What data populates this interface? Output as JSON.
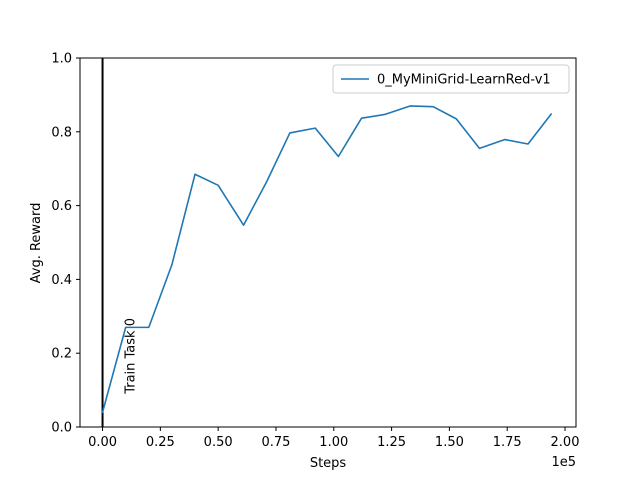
{
  "chart_data": {
    "type": "line",
    "title": "",
    "xlabel": "Steps",
    "ylabel": "Avg. Reward",
    "x_offset_label": "1e5",
    "xlim": [
      -0.0975,
      2.0475
    ],
    "ylim": [
      0.0,
      1.0
    ],
    "x_ticks": [
      0.0,
      0.25,
      0.5,
      0.75,
      1.0,
      1.25,
      1.5,
      1.75,
      2.0
    ],
    "x_tick_labels": [
      "0.00",
      "0.25",
      "0.50",
      "0.75",
      "1.00",
      "1.25",
      "1.50",
      "1.75",
      "2.00"
    ],
    "y_ticks": [
      0.0,
      0.2,
      0.4,
      0.6,
      0.8,
      1.0
    ],
    "y_tick_labels": [
      "0.0",
      "0.2",
      "0.4",
      "0.6",
      "0.8",
      "1.0"
    ],
    "grid": false,
    "legend_position": "top-right",
    "series": [
      {
        "name": "0_MyMiniGrid-LearnRed-v1",
        "color": "#1f77b4",
        "x": [
          0.0,
          0.1,
          0.2,
          0.3,
          0.4,
          0.5,
          0.61,
          0.71,
          0.81,
          0.92,
          1.02,
          1.12,
          1.22,
          1.33,
          1.43,
          1.53,
          1.63,
          1.74,
          1.84,
          1.94
        ],
        "y": [
          0.04,
          0.27,
          0.27,
          0.44,
          0.685,
          0.655,
          0.547,
          0.665,
          0.797,
          0.81,
          0.733,
          0.837,
          0.847,
          0.87,
          0.868,
          0.835,
          0.755,
          0.779,
          0.767,
          0.848
        ]
      }
    ],
    "vlines": [
      {
        "x": 0.0,
        "color": "#000000",
        "label": "Train Task 0"
      }
    ]
  }
}
